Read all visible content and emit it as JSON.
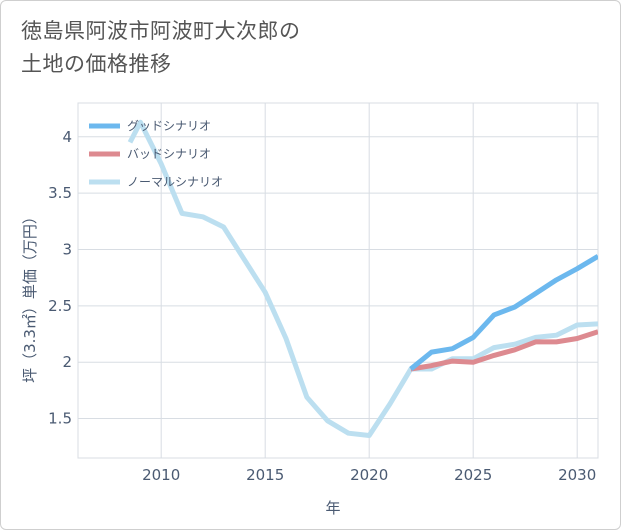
{
  "title_line1": "徳島県阿波市阿波町大次郎の",
  "title_line2": "土地の価格推移",
  "chart_data": {
    "type": "line",
    "xlabel": "年",
    "ylabel": "坪（3.3㎡）単価（万円）",
    "xlim": [
      2006,
      2031
    ],
    "ylim": [
      1.15,
      4.3
    ],
    "x_ticks": [
      2010,
      2015,
      2020,
      2025,
      2030
    ],
    "y_ticks": [
      1.5,
      2,
      2.5,
      3,
      3.5,
      4
    ],
    "grid": true,
    "legend_position": "top-left",
    "series": [
      {
        "name": "グッドシナリオ",
        "color": "#6cb8ee",
        "x": [
          2022,
          2023,
          2024,
          2025,
          2026,
          2027,
          2028,
          2029,
          2030,
          2031
        ],
        "y": [
          1.94,
          2.09,
          2.12,
          2.22,
          2.42,
          2.49,
          2.61,
          2.73,
          2.83,
          2.94
        ]
      },
      {
        "name": "バッドシナリオ",
        "color": "#dd8a90",
        "x": [
          2022,
          2023,
          2024,
          2025,
          2026,
          2027,
          2028,
          2029,
          2030,
          2031
        ],
        "y": [
          1.94,
          1.97,
          2.01,
          2.0,
          2.06,
          2.11,
          2.18,
          2.18,
          2.21,
          2.27
        ]
      },
      {
        "name": "ノーマルシナリオ",
        "color": "#bcdff0",
        "x": [
          2008.5,
          2009,
          2010,
          2011,
          2012,
          2013,
          2014,
          2015,
          2016,
          2017,
          2018,
          2019,
          2020,
          2021,
          2022,
          2023,
          2024,
          2025,
          2026,
          2027,
          2028,
          2029,
          2030,
          2031
        ],
        "y": [
          3.95,
          4.13,
          3.76,
          3.32,
          3.29,
          3.2,
          2.91,
          2.62,
          2.21,
          1.69,
          1.48,
          1.37,
          1.35,
          1.63,
          1.94,
          1.94,
          2.03,
          2.03,
          2.13,
          2.16,
          2.22,
          2.24,
          2.33,
          2.34
        ]
      }
    ]
  }
}
